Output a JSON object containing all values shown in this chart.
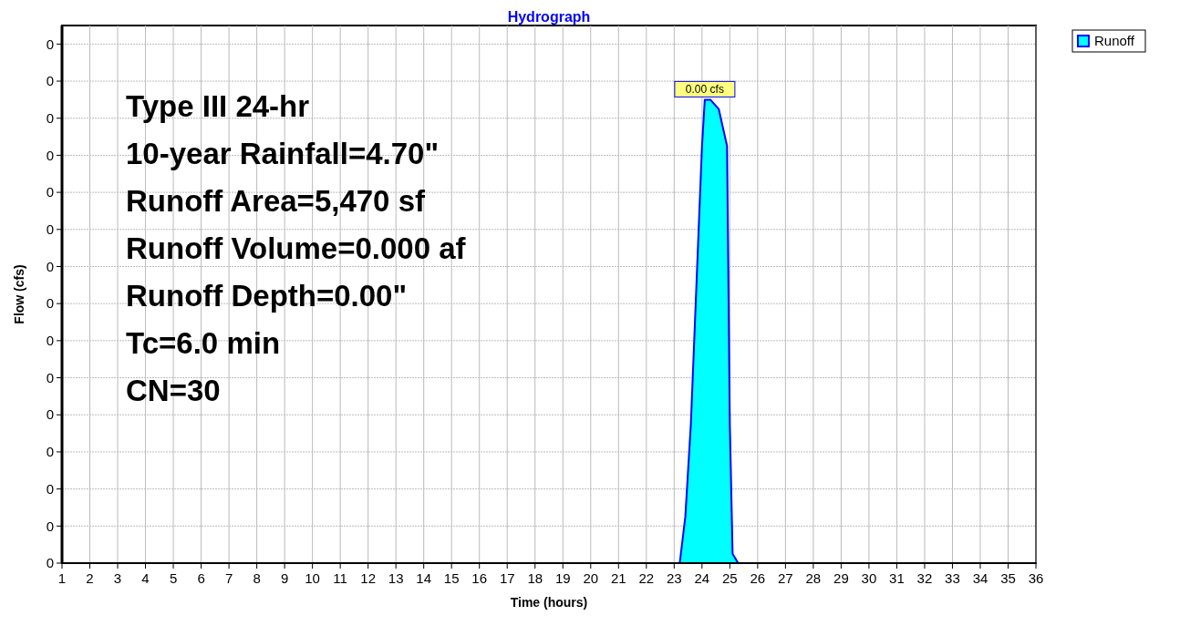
{
  "chart_data": {
    "type": "area",
    "title": "Hydrograph",
    "xlabel": "Time  (hours)",
    "ylabel": "Flow  (cfs)",
    "x": [
      1,
      23.2,
      23.4,
      23.6,
      23.8,
      24.0,
      24.1,
      24.3,
      24.6,
      24.9,
      25.0,
      25.1,
      25.3,
      36
    ],
    "series": [
      {
        "name": "Runoff",
        "color": "#00ffff",
        "values": [
          0,
          0,
          0.00025,
          0.00075,
          0.0015,
          0.00225,
          0.0025,
          0.0025,
          0.00245,
          0.00225,
          0.00075,
          5e-05,
          0,
          0
        ]
      }
    ],
    "xlim": [
      1,
      36
    ],
    "xticks": [
      1,
      2,
      3,
      4,
      5,
      6,
      7,
      8,
      9,
      10,
      11,
      12,
      13,
      14,
      15,
      16,
      17,
      18,
      19,
      20,
      21,
      22,
      23,
      24,
      25,
      26,
      27,
      28,
      29,
      30,
      31,
      32,
      33,
      34,
      35,
      36
    ],
    "ylim": [
      0,
      0.0029
    ],
    "yticks": [
      {
        "value": 0,
        "label": "0"
      },
      {
        "value": 0.0002,
        "label": "0"
      },
      {
        "value": 0.0004,
        "label": "0"
      },
      {
        "value": 0.0006,
        "label": "0"
      },
      {
        "value": 0.0008,
        "label": "0"
      },
      {
        "value": 0.001,
        "label": "0"
      },
      {
        "value": 0.0012,
        "label": "0"
      },
      {
        "value": 0.0014,
        "label": "0"
      },
      {
        "value": 0.0016,
        "label": "0"
      },
      {
        "value": 0.0018,
        "label": "0"
      },
      {
        "value": 0.002,
        "label": "0"
      },
      {
        "value": 0.0022,
        "label": "0"
      },
      {
        "value": 0.0024,
        "label": "0"
      },
      {
        "value": 0.0026,
        "label": "0"
      },
      {
        "value": 0.0028,
        "label": "0"
      }
    ],
    "grid": true,
    "legend": "top right",
    "annotations": [
      {
        "text": "0.00 cfs",
        "x": 24.1,
        "y": 0.0025
      },
      "Type III 24-hr",
      "10-year Rainfall=4.70\"",
      "Runoff Area=5,470 sf",
      "Runoff Volume=0.000 af",
      "Runoff Depth=0.00\"",
      "Tc=6.0 min",
      "CN=30"
    ]
  }
}
